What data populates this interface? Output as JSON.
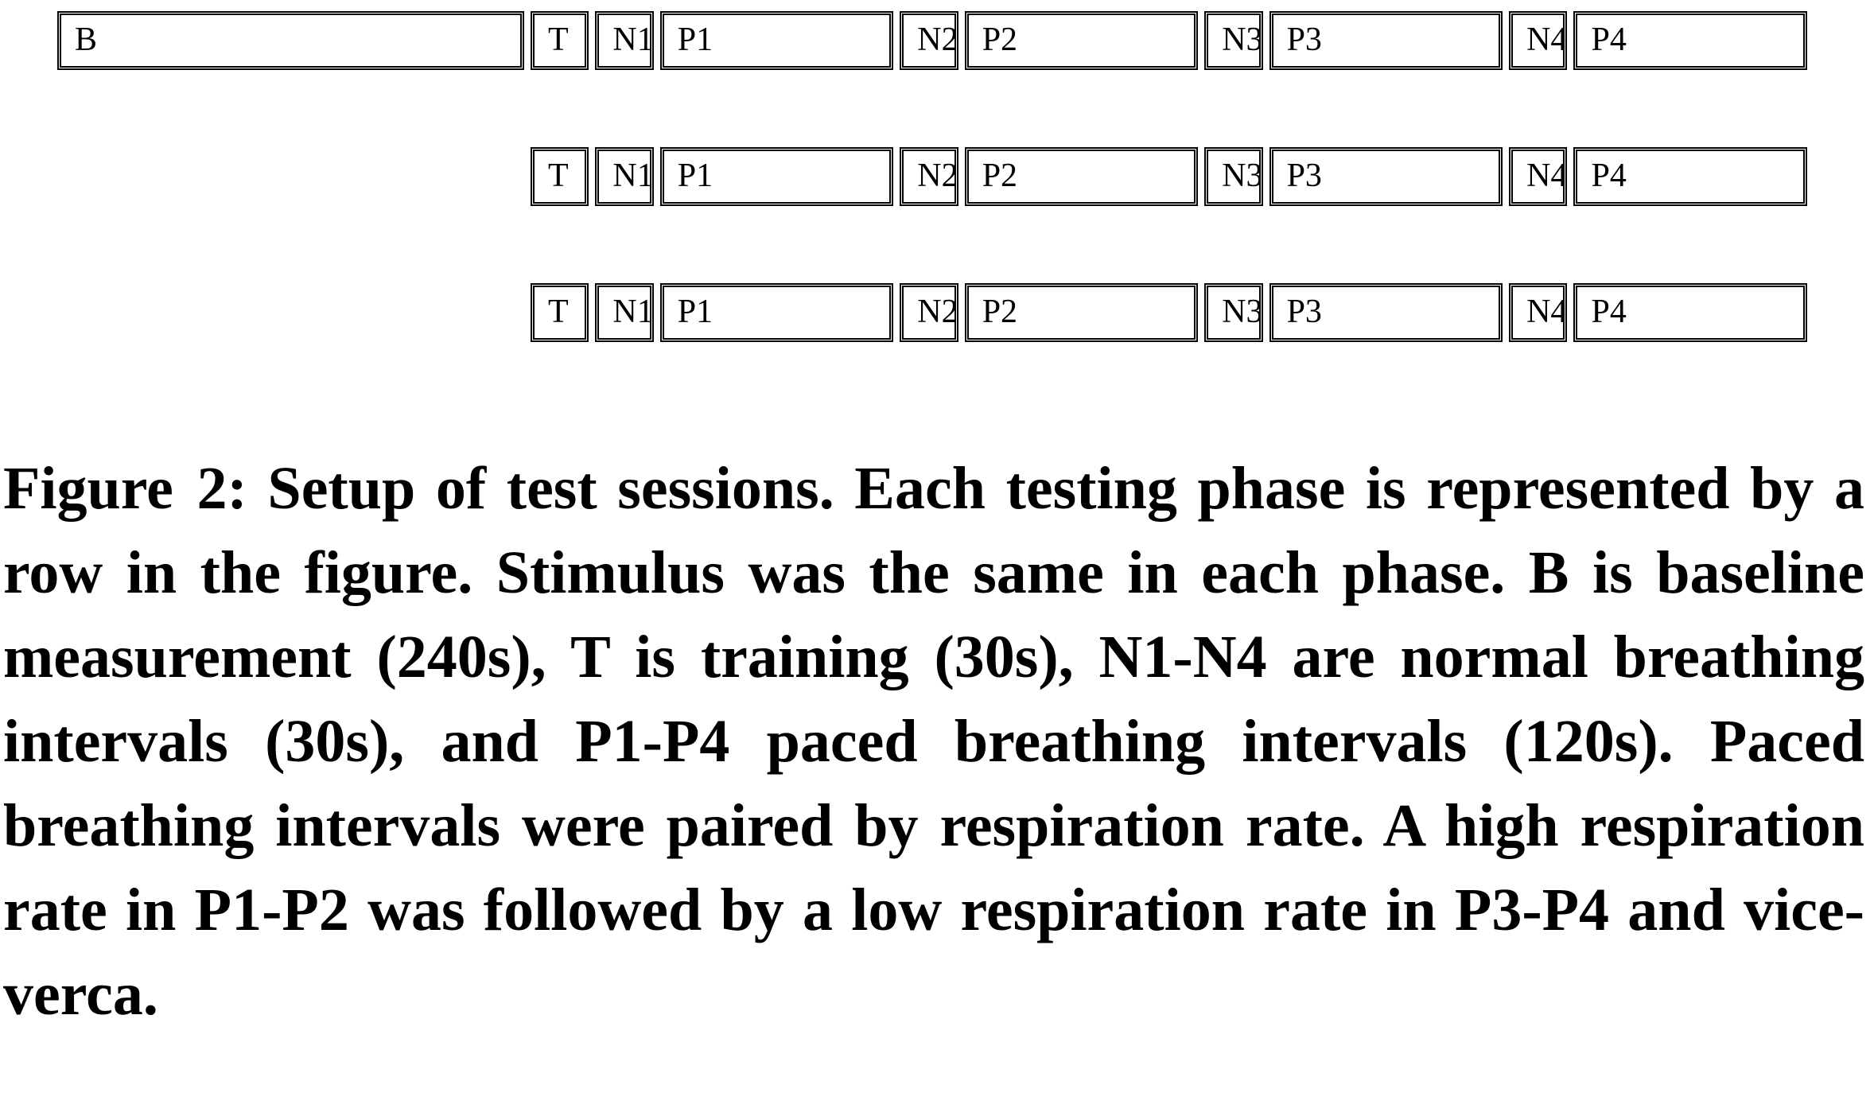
{
  "figure": {
    "rows": [
      {
        "blocks": [
          {
            "label": "B",
            "duration_s": 240
          },
          {
            "label": "T",
            "duration_s": 30
          },
          {
            "label": "N1",
            "duration_s": 30
          },
          {
            "label": "P1",
            "duration_s": 120
          },
          {
            "label": "N2",
            "duration_s": 30
          },
          {
            "label": "P2",
            "duration_s": 120
          },
          {
            "label": "N3",
            "duration_s": 30
          },
          {
            "label": "P3",
            "duration_s": 120
          },
          {
            "label": "N4",
            "duration_s": 30
          },
          {
            "label": "P4",
            "duration_s": 120
          }
        ]
      },
      {
        "blocks": [
          {
            "label": "T",
            "duration_s": 30
          },
          {
            "label": "N1",
            "duration_s": 30
          },
          {
            "label": "P1",
            "duration_s": 120
          },
          {
            "label": "N2",
            "duration_s": 30
          },
          {
            "label": "P2",
            "duration_s": 120
          },
          {
            "label": "N3",
            "duration_s": 30
          },
          {
            "label": "P3",
            "duration_s": 120
          },
          {
            "label": "N4",
            "duration_s": 30
          },
          {
            "label": "P4",
            "duration_s": 120
          }
        ]
      },
      {
        "blocks": [
          {
            "label": "T",
            "duration_s": 30
          },
          {
            "label": "N1",
            "duration_s": 30
          },
          {
            "label": "P1",
            "duration_s": 120
          },
          {
            "label": "N2",
            "duration_s": 30
          },
          {
            "label": "P2",
            "duration_s": 120
          },
          {
            "label": "N3",
            "duration_s": 30
          },
          {
            "label": "P3",
            "duration_s": 120
          },
          {
            "label": "N4",
            "duration_s": 30
          },
          {
            "label": "P4",
            "duration_s": 120
          }
        ]
      }
    ]
  },
  "caption": {
    "prefix": "Figure 2:",
    "text": "Setup of test sessions. Each testing phase is represented by a row in the figure. Stimulus was the same in each phase. B is baseline measurement (240s), T is training (30s), N1-N4 are normal breathing intervals (30s), and P1-P4 paced breathing intervals (120s). Paced breathing intervals were paired by respiration rate. A high respiration rate in P1-P2 was followed by a low respiration rate in P3-P4 and vice-verca."
  }
}
